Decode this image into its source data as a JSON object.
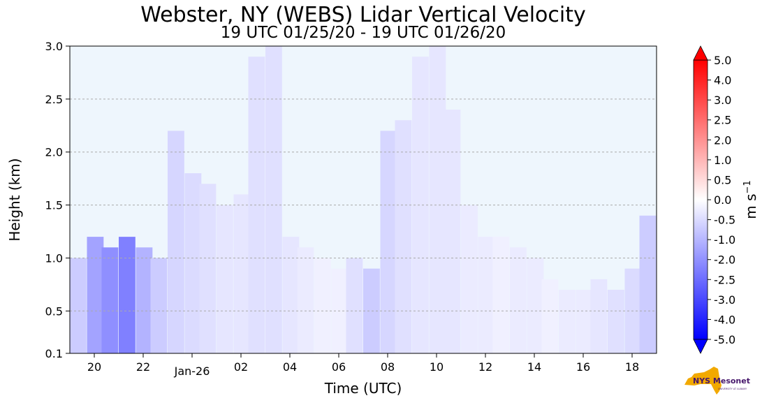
{
  "chart_data": {
    "type": "heatmap",
    "title": "Webster, NY (WEBS) Lidar Vertical Velocity",
    "subtitle": "19 UTC 01/25/20 - 19 UTC 01/26/20",
    "xlabel": "Time (UTC)",
    "ylabel": "Height (km)",
    "x_ticks": [
      "20",
      "22",
      "Jan-26",
      "02",
      "04",
      "06",
      "08",
      "10",
      "12",
      "14",
      "16",
      "18"
    ],
    "y_ticks": [
      "0.1",
      "0.5",
      "1.0",
      "1.5",
      "2.0",
      "2.5",
      "3.0"
    ],
    "y_tick_values": [
      0.1,
      0.5,
      1.0,
      1.5,
      2.0,
      2.5,
      3.0
    ],
    "ylim": [
      0.1,
      3.0
    ],
    "x_range_hours": [
      19,
      43
    ],
    "grid": "horizontal dashed",
    "colorbar": {
      "label": "m s",
      "label_superscript": "−1",
      "ticks": [
        "5.0",
        "4.0",
        "3.0",
        "2.5",
        "2.0",
        "1.0",
        "0.5",
        "0.0",
        "-0.5",
        "-1.0",
        "-2.0",
        "-2.5",
        "-3.0",
        "-4.0",
        "-5.0"
      ],
      "range": [
        -5.0,
        5.0
      ],
      "colormap": "bwr",
      "extend": "both"
    },
    "cells": [
      {
        "t": 19.0,
        "h0": 0.1,
        "h1": 1.0,
        "w": -1.0
      },
      {
        "t": 19.7,
        "h0": 0.1,
        "h1": 1.2,
        "w": -1.8
      },
      {
        "t": 20.3,
        "h0": 0.1,
        "h1": 1.1,
        "w": -2.2
      },
      {
        "t": 21.0,
        "h0": 0.1,
        "h1": 1.2,
        "w": -2.5
      },
      {
        "t": 21.7,
        "h0": 0.1,
        "h1": 1.1,
        "w": -1.5
      },
      {
        "t": 22.3,
        "h0": 0.1,
        "h1": 1.0,
        "w": -1.0
      },
      {
        "t": 23.0,
        "h0": 0.1,
        "h1": 2.2,
        "w": -0.8
      },
      {
        "t": 23.7,
        "h0": 0.1,
        "h1": 1.8,
        "w": -0.7
      },
      {
        "t": 24.3,
        "h0": 0.1,
        "h1": 1.7,
        "w": -0.6
      },
      {
        "t": 25.0,
        "h0": 0.1,
        "h1": 1.5,
        "w": -0.5
      },
      {
        "t": 25.7,
        "h0": 0.1,
        "h1": 1.6,
        "w": -0.5
      },
      {
        "t": 26.3,
        "h0": 0.1,
        "h1": 2.9,
        "w": -0.6
      },
      {
        "t": 27.0,
        "h0": 0.1,
        "h1": 3.0,
        "w": -0.6
      },
      {
        "t": 27.7,
        "h0": 0.1,
        "h1": 1.2,
        "w": -0.5
      },
      {
        "t": 28.3,
        "h0": 0.1,
        "h1": 1.1,
        "w": -0.4
      },
      {
        "t": 29.0,
        "h0": 0.1,
        "h1": 1.0,
        "w": -0.3
      },
      {
        "t": 29.7,
        "h0": 0.1,
        "h1": 0.9,
        "w": -0.3
      },
      {
        "t": 30.3,
        "h0": 0.1,
        "h1": 1.0,
        "w": -0.6
      },
      {
        "t": 31.0,
        "h0": 0.1,
        "h1": 0.9,
        "w": -1.0
      },
      {
        "t": 31.7,
        "h0": 0.1,
        "h1": 2.2,
        "w": -0.8
      },
      {
        "t": 32.3,
        "h0": 0.1,
        "h1": 2.3,
        "w": -0.6
      },
      {
        "t": 33.0,
        "h0": 0.1,
        "h1": 2.9,
        "w": -0.5
      },
      {
        "t": 33.7,
        "h0": 0.1,
        "h1": 3.0,
        "w": -0.5
      },
      {
        "t": 34.3,
        "h0": 0.1,
        "h1": 2.4,
        "w": -0.5
      },
      {
        "t": 35.0,
        "h0": 0.1,
        "h1": 1.5,
        "w": -0.4
      },
      {
        "t": 35.7,
        "h0": 0.1,
        "h1": 1.2,
        "w": -0.4
      },
      {
        "t": 36.3,
        "h0": 0.1,
        "h1": 1.2,
        "w": -0.3
      },
      {
        "t": 37.0,
        "h0": 0.1,
        "h1": 1.1,
        "w": -0.4
      },
      {
        "t": 37.7,
        "h0": 0.1,
        "h1": 1.0,
        "w": -0.4
      },
      {
        "t": 38.3,
        "h0": 0.1,
        "h1": 0.8,
        "w": -0.3
      },
      {
        "t": 39.0,
        "h0": 0.1,
        "h1": 0.7,
        "w": -0.4
      },
      {
        "t": 39.7,
        "h0": 0.1,
        "h1": 0.7,
        "w": -0.4
      },
      {
        "t": 40.3,
        "h0": 0.1,
        "h1": 0.8,
        "w": -0.5
      },
      {
        "t": 41.0,
        "h0": 0.1,
        "h1": 0.7,
        "w": -0.6
      },
      {
        "t": 41.7,
        "h0": 0.1,
        "h1": 0.9,
        "w": -0.7
      },
      {
        "t": 42.3,
        "h0": 0.1,
        "h1": 1.4,
        "w": -1.0
      }
    ]
  },
  "logo": {
    "text": "NYS Mesonet",
    "subtext": "UNIVERSITY AT ALBANY",
    "colors": [
      "#f2a900",
      "#46166b"
    ]
  }
}
